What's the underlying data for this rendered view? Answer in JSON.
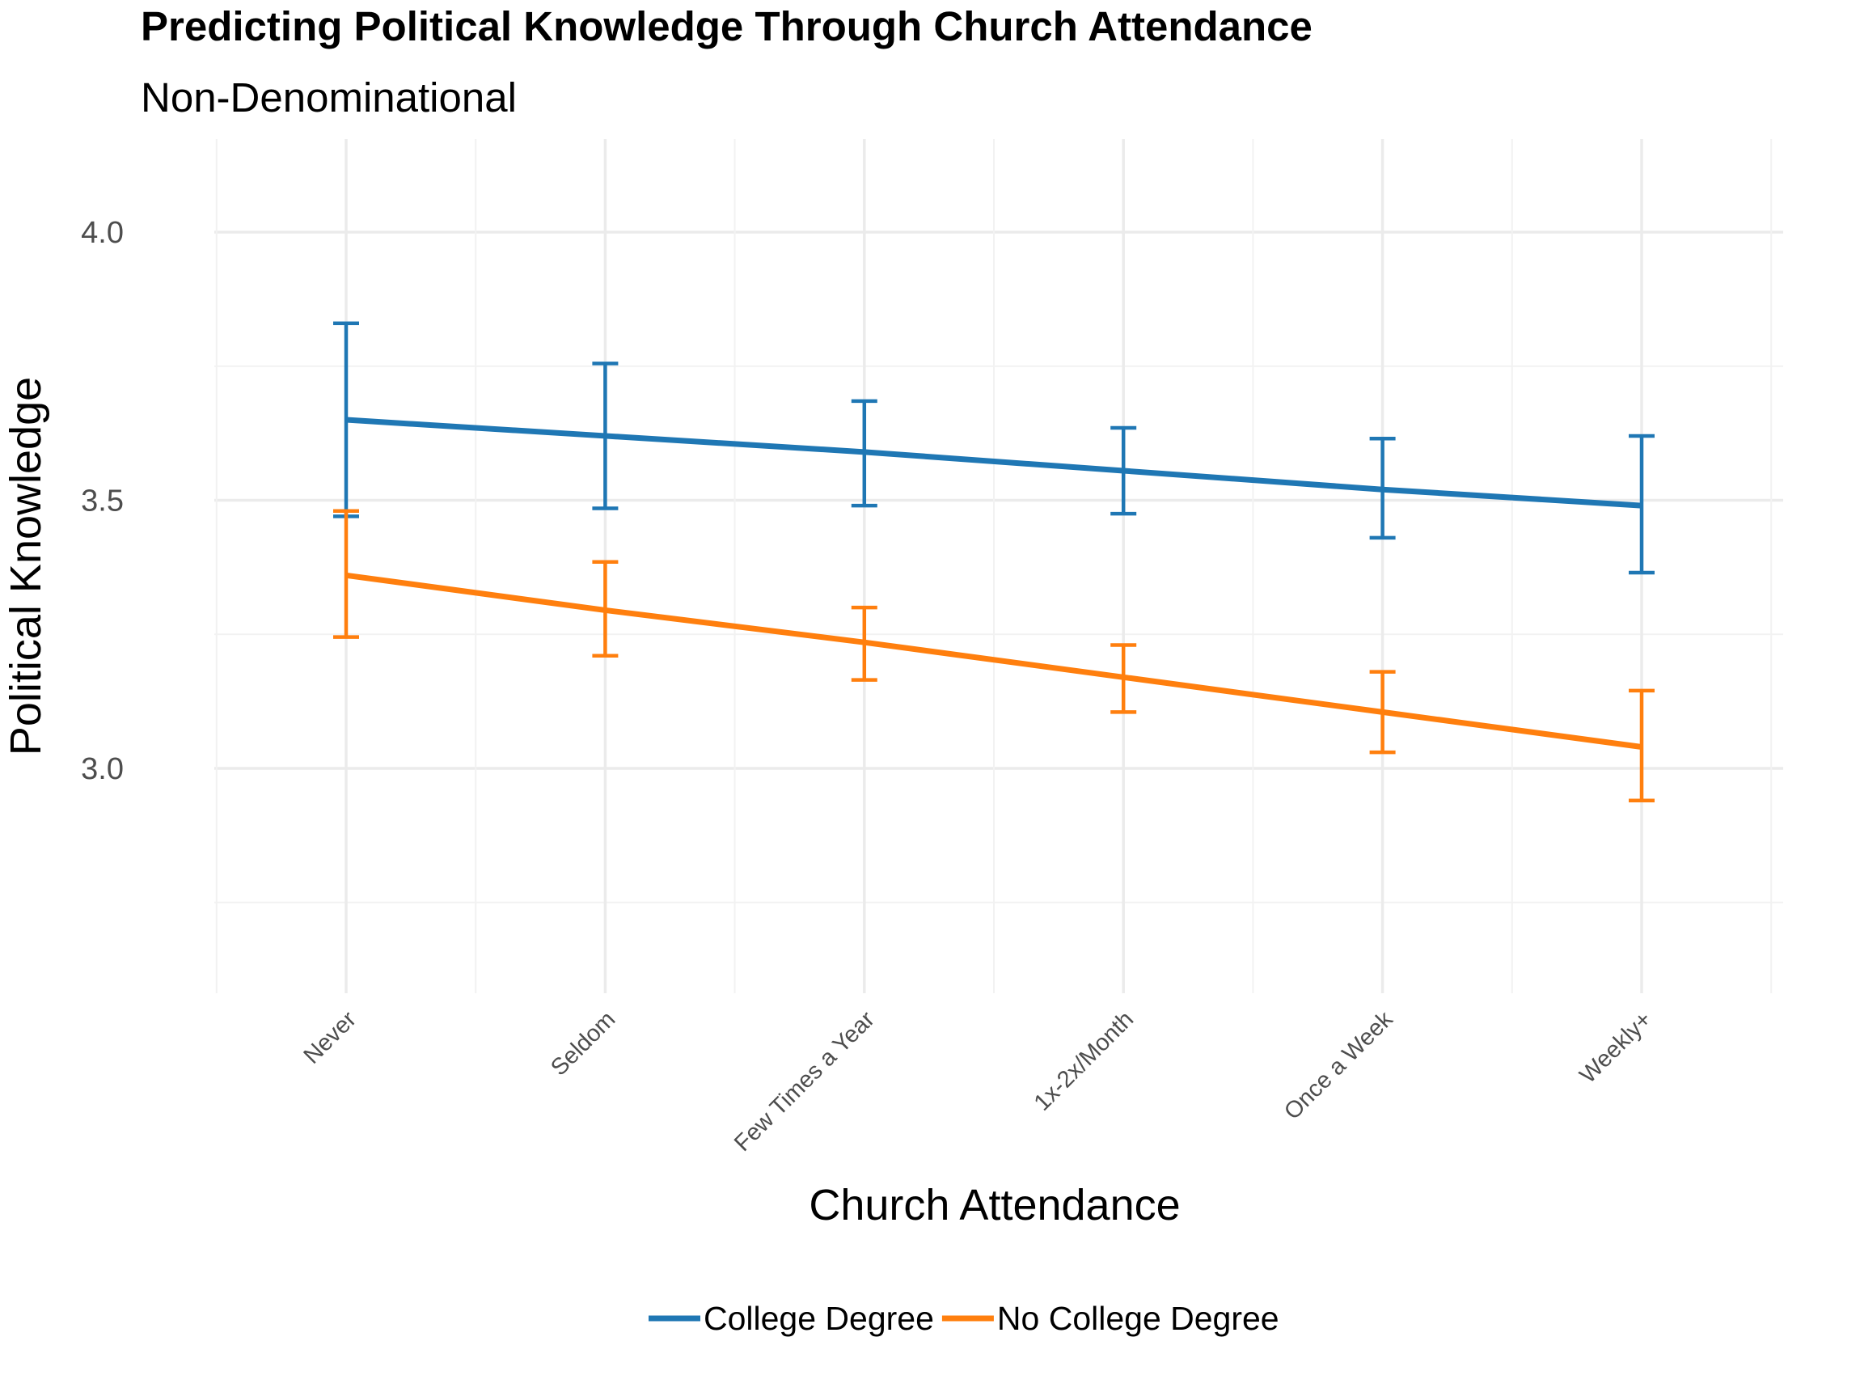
{
  "chart_data": {
    "type": "line",
    "title": "Predicting Political Knowledge Through Church Attendance",
    "subtitle": "Non-Denominational",
    "xlabel": "Church Attendance",
    "ylabel": "Political Knowledge",
    "categories": [
      "Never",
      "Seldom",
      "Few Times a Year",
      "1x-2x/Month",
      "Once a Week",
      "Weekly+"
    ],
    "ylim": [
      2.6,
      4.17
    ],
    "y_ticks": [
      "3.0",
      "3.5",
      "4.0"
    ],
    "y_tick_values": [
      3.0,
      3.5,
      4.0
    ],
    "grid": true,
    "legend_position": "bottom",
    "error_bars": true,
    "series": [
      {
        "name": "College Degree",
        "color": "#1f77b4",
        "values": [
          3.65,
          3.62,
          3.59,
          3.555,
          3.52,
          3.49
        ],
        "lower": [
          3.47,
          3.485,
          3.49,
          3.475,
          3.43,
          3.365
        ],
        "upper": [
          3.83,
          3.755,
          3.685,
          3.635,
          3.615,
          3.62
        ]
      },
      {
        "name": "No College Degree",
        "color": "#ff7f0e",
        "values": [
          3.36,
          3.295,
          3.235,
          3.17,
          3.105,
          3.04
        ],
        "lower": [
          3.245,
          3.21,
          3.165,
          3.105,
          3.03,
          2.94
        ],
        "upper": [
          3.48,
          3.385,
          3.3,
          3.23,
          3.18,
          3.145
        ]
      }
    ]
  }
}
